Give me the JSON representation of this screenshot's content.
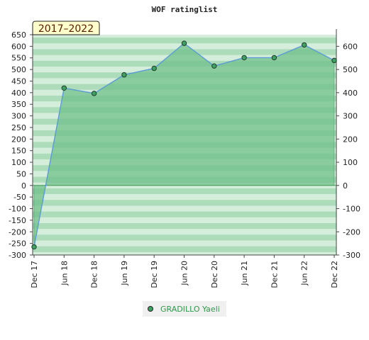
{
  "chart_data": {
    "type": "area",
    "title": "WOF ratinglist",
    "period_label": "2017–2022",
    "categories": [
      "Dec 17",
      "Jun 18",
      "Dec 18",
      "Jun 19",
      "Dec 19",
      "Jun 20",
      "Dec 20",
      "Jun 21",
      "Dec 21",
      "Jun 22",
      "Dec 22"
    ],
    "series": [
      {
        "name": "GRADILLO Yaeli",
        "values": [
          -265,
          420,
          397,
          477,
          505,
          613,
          515,
          551,
          551,
          606,
          539
        ]
      }
    ],
    "ylim": [
      -300,
      650
    ],
    "left_ticks": [
      650,
      600,
      550,
      500,
      450,
      400,
      350,
      300,
      250,
      200,
      150,
      100,
      50,
      0,
      -50,
      -100,
      -150,
      -200,
      -250,
      -300
    ],
    "right_ticks": [
      600,
      500,
      400,
      300,
      200,
      100,
      0,
      -100,
      -200,
      -300
    ],
    "legend_position": "bottom",
    "colors": {
      "line": "#5b9bd5",
      "fill": "#70c08a",
      "marker": "#3fa163",
      "band_light": "#f2faf4",
      "band_dark": "#9fd6ae",
      "period_bg": "#ffffcc"
    }
  }
}
